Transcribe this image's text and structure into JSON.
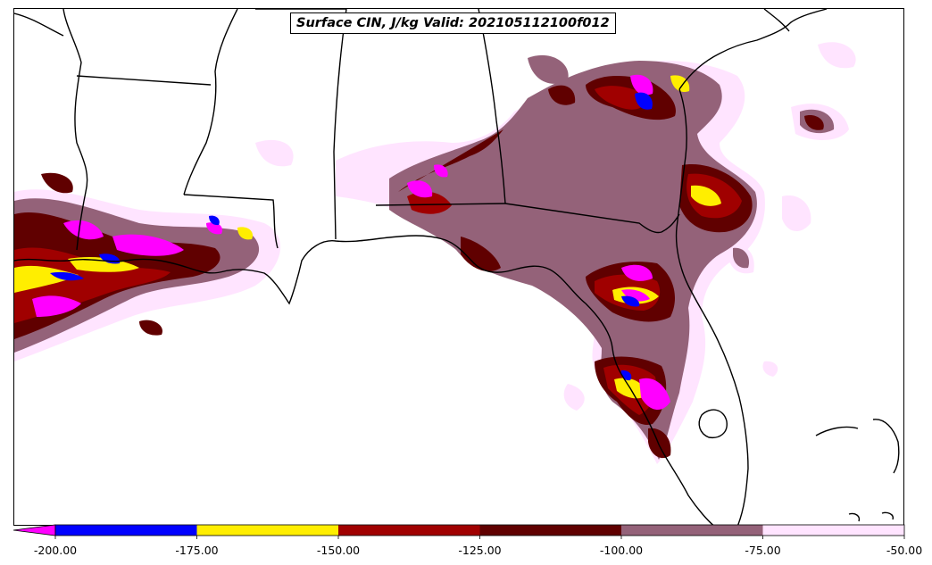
{
  "title": "Surface CIN, J/kg Valid: 202105112100f012",
  "colorbar": {
    "levels": [
      -200,
      -175,
      -150,
      -125,
      -100,
      -75,
      -50
    ],
    "tick_labels": [
      "-200.00",
      "-175.00",
      "-150.00",
      "-125.00",
      "-100.00",
      "-75.00",
      "-50.00"
    ],
    "colors": [
      "#0000ff",
      "#ffee00",
      "#a00000",
      "#600000",
      "#946279",
      "#ffe4ff"
    ],
    "extend_color": "#ff00ff",
    "extend": "min"
  },
  "colors": {
    "lt_-200": "#ff00ff",
    "band_-200_-175": "#0000ff",
    "band_-175_-150": "#ffee00",
    "band_-150_-125": "#a00000",
    "band_-125_-100": "#600000",
    "band_-100_-75": "#946279",
    "band_-75_-50": "#ffe4ff",
    "boundaries": "#000000"
  }
}
